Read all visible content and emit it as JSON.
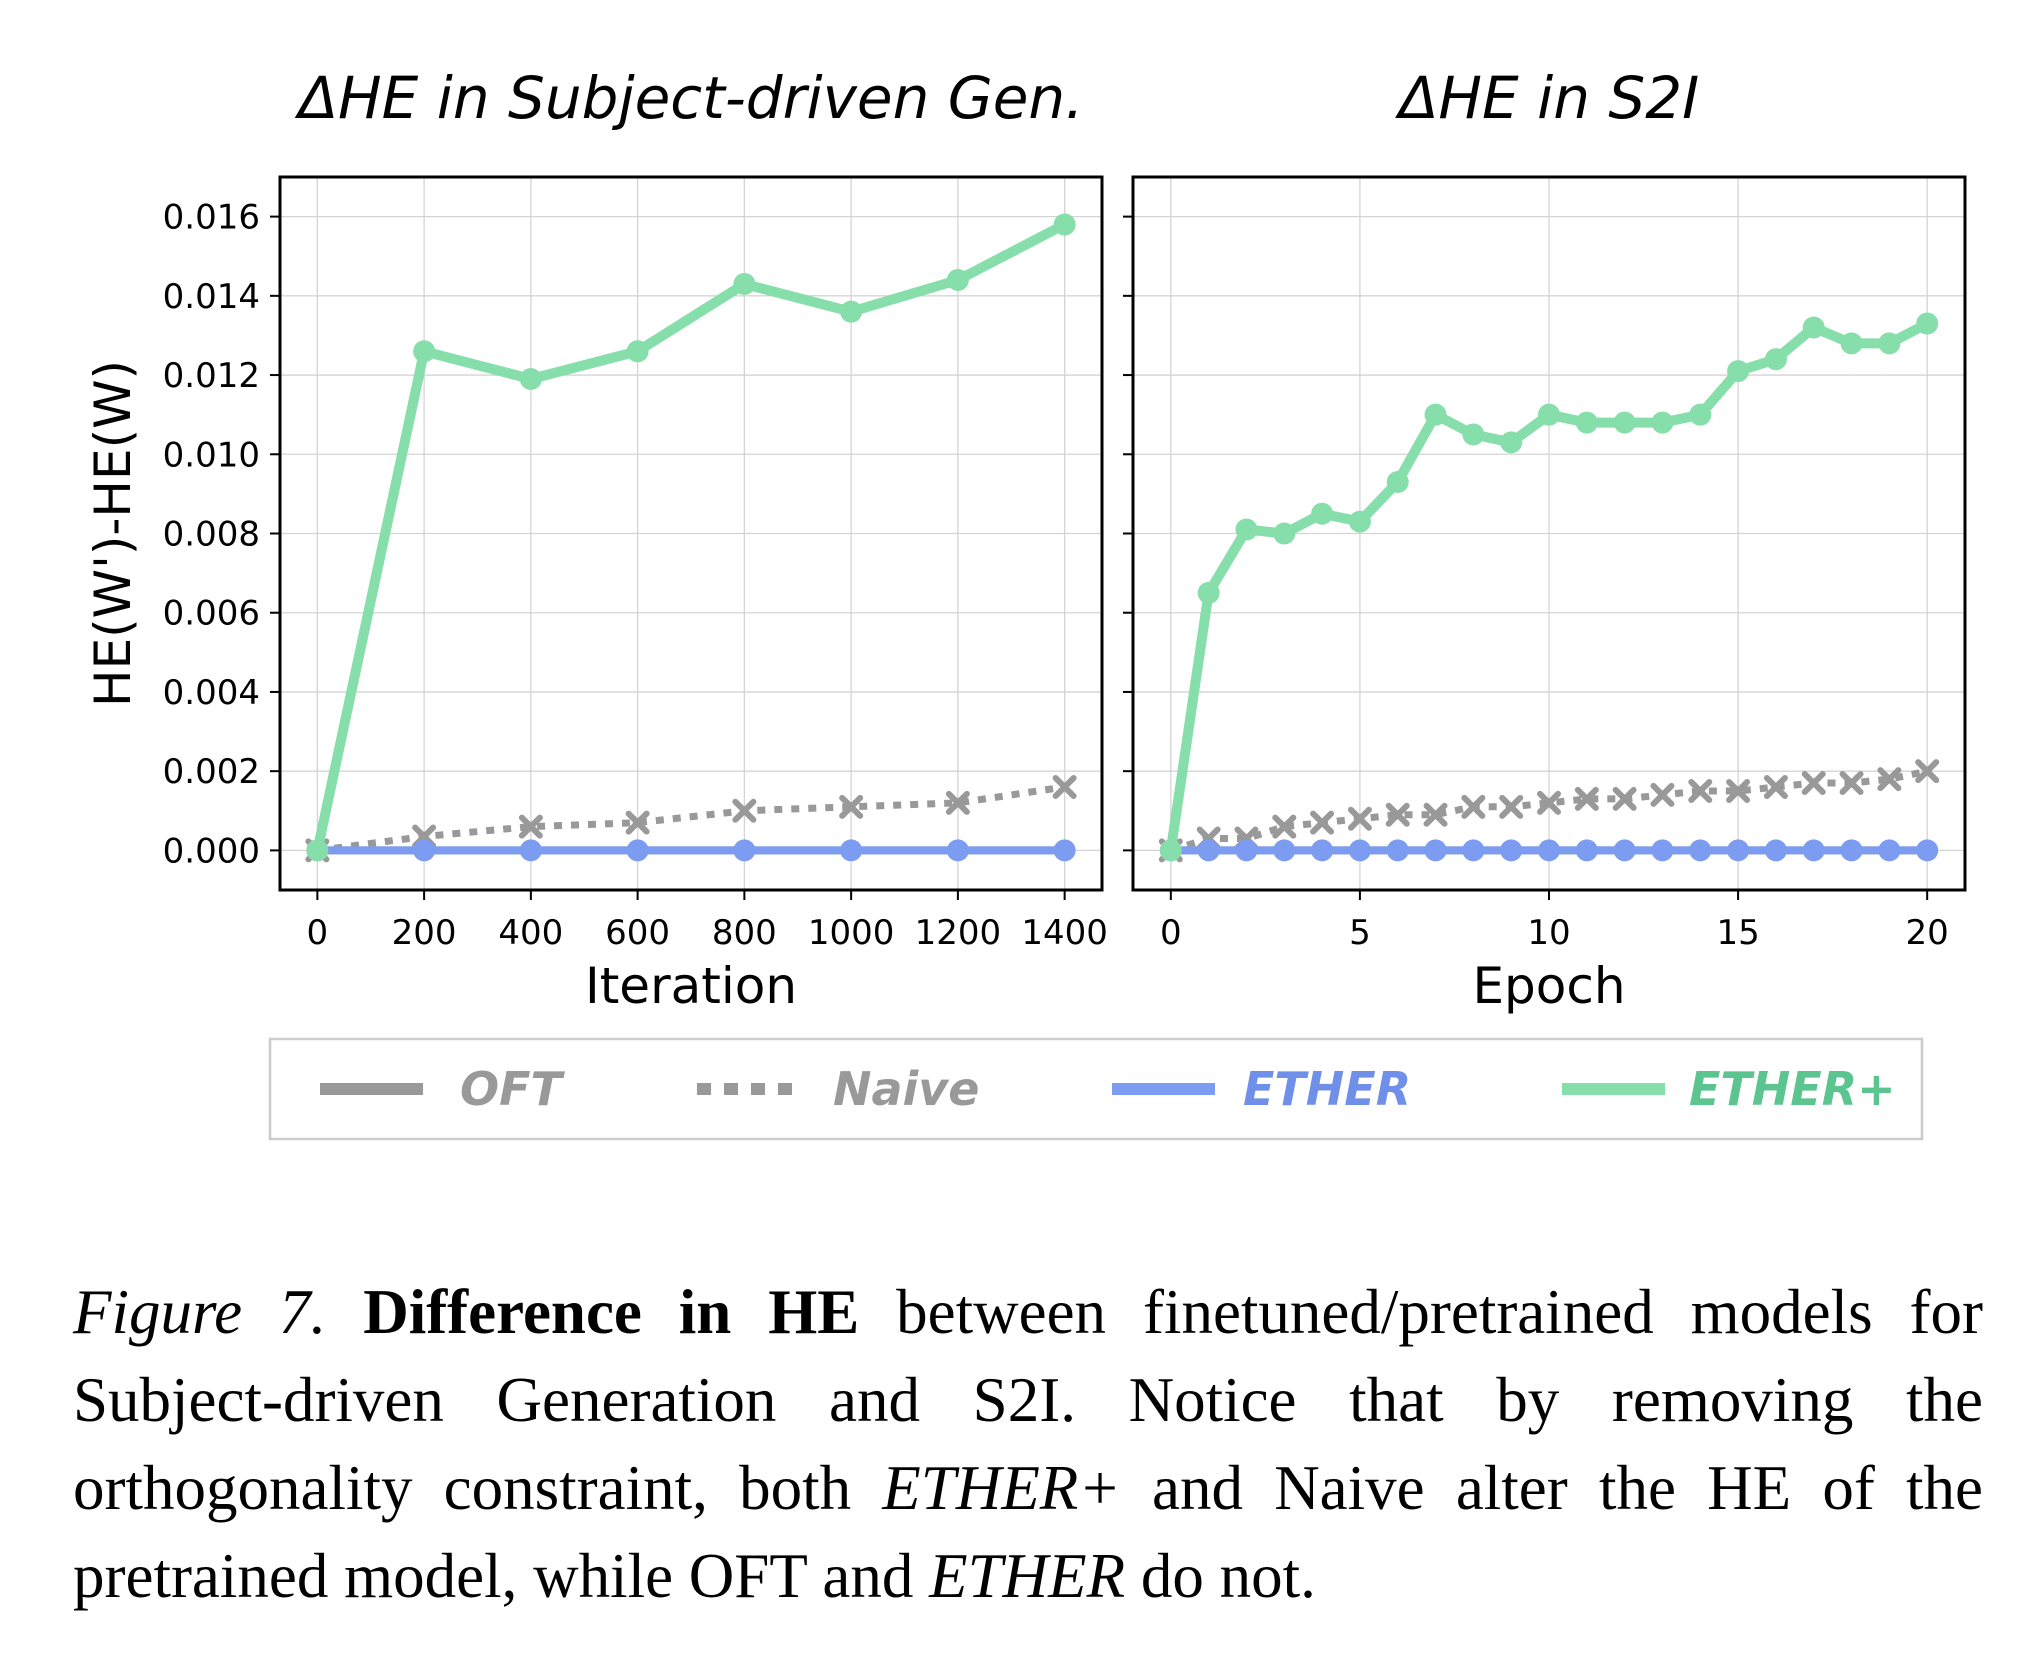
{
  "chart_data": [
    {
      "type": "line",
      "title": "ΔHE in Subject-driven Gen.",
      "xlabel": "Iteration",
      "ylabel": "HE(W')-HE(W)",
      "x": [
        0,
        200,
        400,
        600,
        800,
        1000,
        1200,
        1400
      ],
      "xticks": [
        "0",
        "200",
        "400",
        "600",
        "800",
        "1000",
        "1200",
        "1400"
      ],
      "xlim": [
        -70,
        1470
      ],
      "ylim": [
        -0.001,
        0.017
      ],
      "yticks": [
        "0.000",
        "0.002",
        "0.004",
        "0.006",
        "0.008",
        "0.010",
        "0.012",
        "0.014",
        "0.016"
      ],
      "grid": true,
      "series": [
        {
          "name": "OFT",
          "values": [
            0,
            0,
            0,
            0,
            0,
            0,
            0,
            0
          ]
        },
        {
          "name": "Naive",
          "values": [
            0,
            0.00035,
            0.0006,
            0.0007,
            0.001,
            0.0011,
            0.0012,
            0.0016
          ]
        },
        {
          "name": "ETHER",
          "values": [
            0,
            0,
            0,
            0,
            0,
            0,
            0,
            0
          ]
        },
        {
          "name": "ETHER+",
          "values": [
            0,
            0.0126,
            0.0119,
            0.0126,
            0.0143,
            0.0136,
            0.0144,
            0.0158
          ]
        }
      ]
    },
    {
      "type": "line",
      "title": "ΔHE in S2I",
      "xlabel": "Epoch",
      "ylabel": "",
      "x": [
        0,
        1,
        2,
        3,
        4,
        5,
        6,
        7,
        8,
        9,
        10,
        11,
        12,
        13,
        14,
        15,
        16,
        17,
        18,
        19,
        20
      ],
      "xticks": [
        "0",
        "5",
        "10",
        "15",
        "20"
      ],
      "xlim": [
        -1,
        21
      ],
      "ylim": [
        -0.001,
        0.017
      ],
      "grid": true,
      "series": [
        {
          "name": "OFT",
          "values": [
            0,
            0,
            0,
            0,
            0,
            0,
            0,
            0,
            0,
            0,
            0,
            0,
            0,
            0,
            0,
            0,
            0,
            0,
            0,
            0,
            0
          ]
        },
        {
          "name": "Naive",
          "values": [
            0,
            0.0003,
            0.0003,
            0.0006,
            0.0007,
            0.0008,
            0.0009,
            0.0009,
            0.0011,
            0.0011,
            0.0012,
            0.0013,
            0.0013,
            0.0014,
            0.0015,
            0.0015,
            0.0016,
            0.0017,
            0.0017,
            0.0018,
            0.002
          ]
        },
        {
          "name": "ETHER",
          "values": [
            0,
            0,
            0,
            0,
            0,
            0,
            0,
            0,
            0,
            0,
            0,
            0,
            0,
            0,
            0,
            0,
            0,
            0,
            0,
            0,
            0
          ]
        },
        {
          "name": "ETHER+",
          "values": [
            0,
            0.0065,
            0.0081,
            0.008,
            0.0085,
            0.0083,
            0.0093,
            0.011,
            0.0105,
            0.0103,
            0.011,
            0.0108,
            0.0108,
            0.0108,
            0.011,
            0.0121,
            0.0124,
            0.0132,
            0.0128,
            0.0128,
            0.0133
          ]
        }
      ]
    }
  ],
  "legend": [
    {
      "name": "OFT",
      "color": "#999999",
      "text_color": "#999999",
      "style": "solid"
    },
    {
      "name": "Naive",
      "color": "#999999",
      "text_color": "#999999",
      "style": "dotted"
    },
    {
      "name": "ETHER",
      "color": "#7b9cf0",
      "text_color": "#6f8fe8",
      "style": "solid"
    },
    {
      "name": "ETHER+",
      "color": "#86deaa",
      "text_color": "#5cc58f",
      "style": "solid"
    }
  ],
  "caption": {
    "label": "Figure 7.",
    "bold": "Difference in HE",
    "text1": " between finetuned/pretrained models for Subject-driven Generation and S2I. Notice that by removing the orthogonality constraint, both ",
    "em1": "ETHER+",
    "text2": " and Naive alter the HE of the pretrained model, while OFT and ",
    "em2": "ETHER",
    "text3": " do not."
  }
}
